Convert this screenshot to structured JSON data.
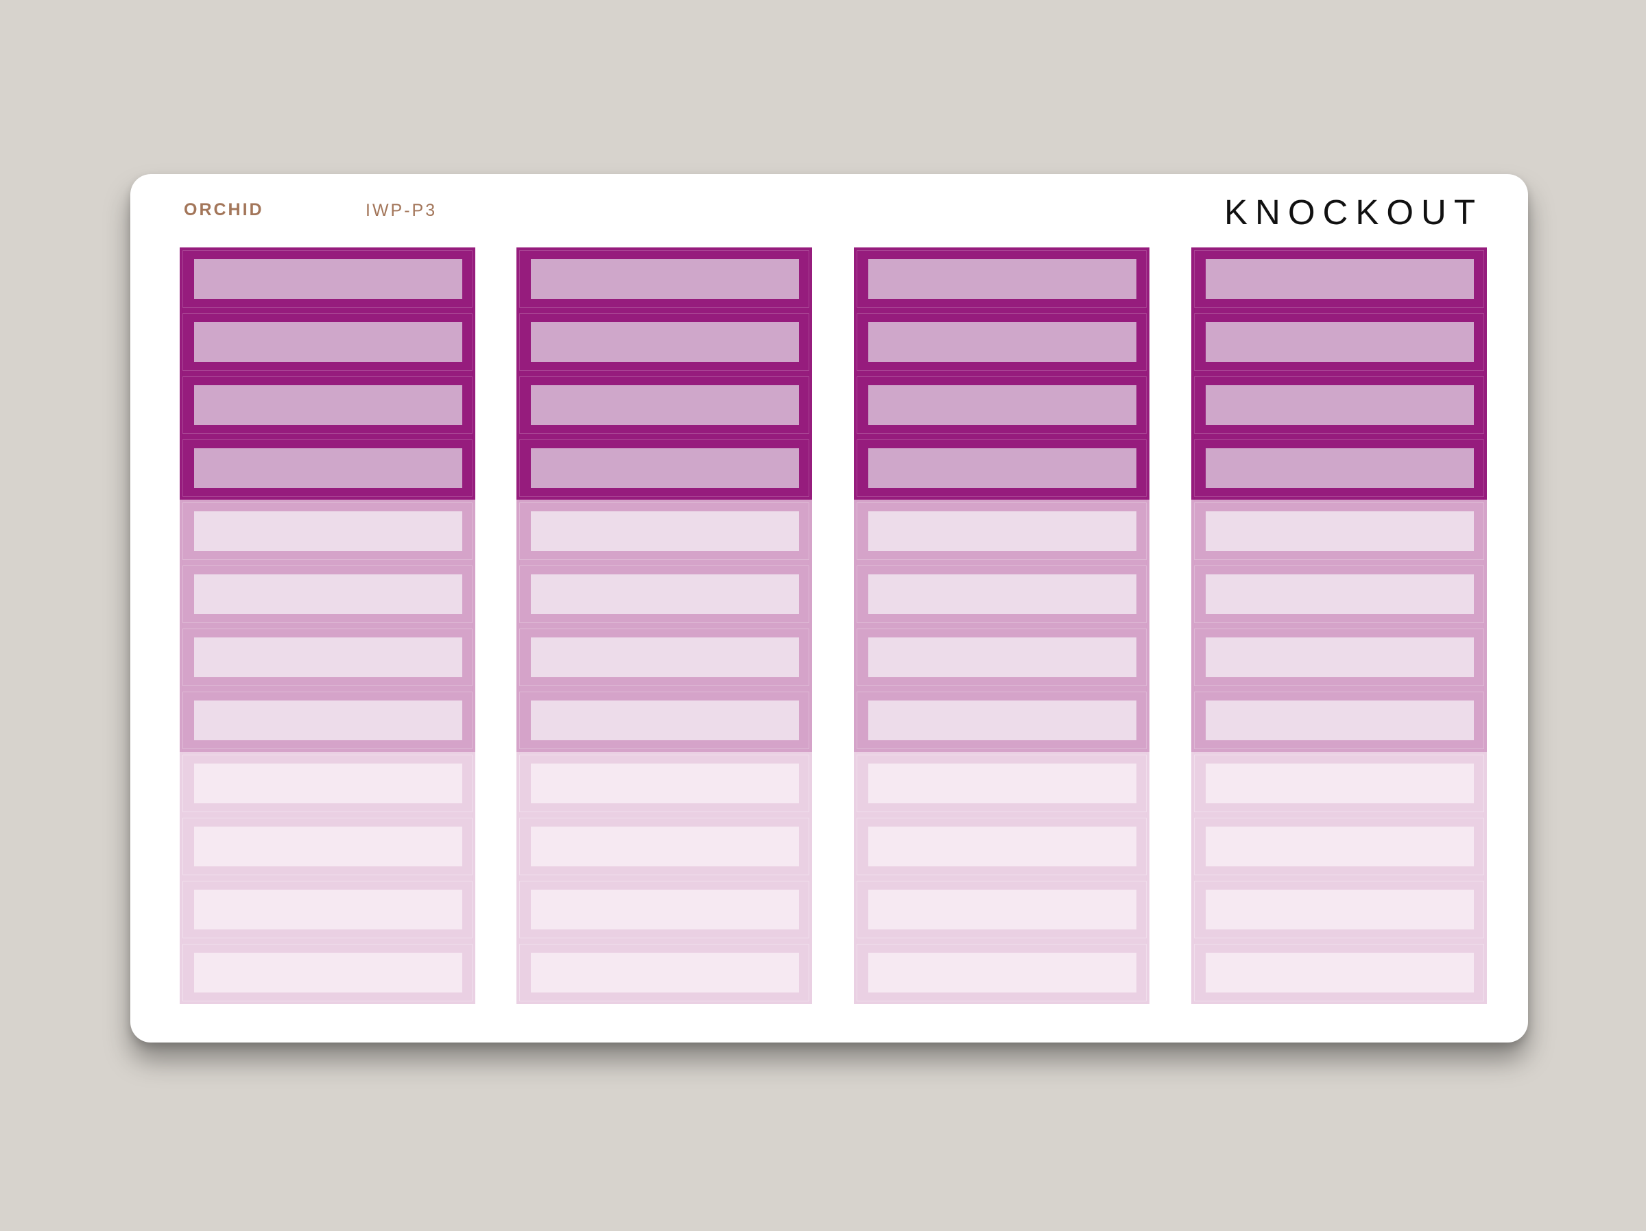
{
  "sheet": {
    "color_name": "ORCHID",
    "code": "IWP-P3",
    "brand": "KNOCKOUT"
  },
  "palette": {
    "background": "#d7d3cd",
    "dark_frame": "#961c7d",
    "dark_fill": "#cfa7ca",
    "mid_frame": "#d5a3c9",
    "mid_fill": "#eddcea",
    "light_frame": "#ead0e3",
    "light_fill": "#f6e9f2"
  },
  "columns": [
    {
      "stickers": [
        "dark",
        "dark",
        "dark",
        "dark",
        "mid",
        "mid",
        "mid",
        "mid",
        "light",
        "light",
        "light",
        "light"
      ]
    },
    {
      "stickers": [
        "dark",
        "dark",
        "dark",
        "dark",
        "mid",
        "mid",
        "mid",
        "mid",
        "light",
        "light",
        "light",
        "light"
      ]
    },
    {
      "stickers": [
        "dark",
        "dark",
        "dark",
        "dark",
        "mid",
        "mid",
        "mid",
        "mid",
        "light",
        "light",
        "light",
        "light"
      ]
    },
    {
      "stickers": [
        "dark",
        "dark",
        "dark",
        "dark",
        "mid",
        "mid",
        "mid",
        "mid",
        "light",
        "light",
        "light",
        "light"
      ]
    }
  ]
}
